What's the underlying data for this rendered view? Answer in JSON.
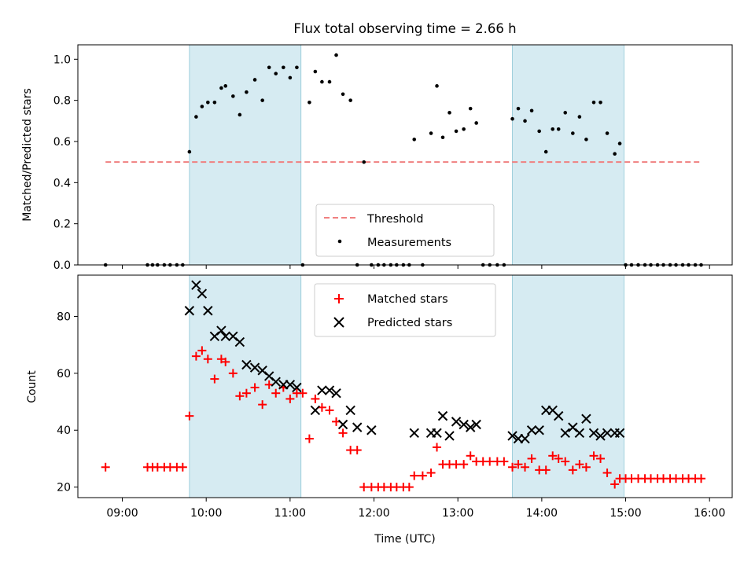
{
  "chart_data": [
    {
      "type": "scatter",
      "title": "Flux total observing time = 2.66 h",
      "ylabel": "Matched/Predicted stars",
      "xlabel": "",
      "xlim": [
        8.47,
        16.27
      ],
      "ylim": [
        0.0,
        1.07
      ],
      "yticks": [
        0.0,
        0.2,
        0.4,
        0.6,
        0.8,
        1.0
      ],
      "ytick_labels": [
        "0.0",
        "0.2",
        "0.4",
        "0.6",
        "0.8",
        "1.0"
      ],
      "shaded_spans": [
        [
          9.8,
          11.13
        ],
        [
          13.65,
          14.98
        ]
      ],
      "threshold": {
        "name": "Threshold",
        "y": 0.5,
        "x": [
          8.8,
          15.9
        ],
        "color": "#f08080"
      },
      "legend": {
        "position": "lower-center",
        "entries": [
          "Threshold",
          "Measurements"
        ]
      },
      "series": [
        {
          "name": "Measurements",
          "color": "#000000",
          "marker": "dot",
          "x": [
            8.8,
            9.3,
            9.36,
            9.42,
            9.5,
            9.57,
            9.65,
            9.72,
            9.8,
            9.88,
            9.95,
            10.02,
            10.1,
            10.18,
            10.23,
            10.32,
            10.4,
            10.48,
            10.58,
            10.67,
            10.75,
            10.83,
            10.92,
            11.0,
            11.08,
            11.15,
            11.23,
            11.3,
            11.38,
            11.47,
            11.55,
            11.63,
            11.72,
            11.8,
            11.88,
            11.97,
            12.05,
            12.12,
            12.2,
            12.27,
            12.35,
            12.42,
            12.48,
            12.58,
            12.68,
            12.75,
            12.82,
            12.9,
            12.98,
            13.07,
            13.15,
            13.22,
            13.3,
            13.38,
            13.47,
            13.55,
            13.65,
            13.72,
            13.8,
            13.88,
            13.97,
            14.05,
            14.13,
            14.2,
            14.28,
            14.37,
            14.45,
            14.53,
            14.62,
            14.7,
            14.78,
            14.87,
            14.93,
            15.0,
            15.07,
            15.15,
            15.23,
            15.3,
            15.38,
            15.45,
            15.53,
            15.6,
            15.68,
            15.75,
            15.83,
            15.9
          ],
          "y": [
            0.0,
            0.0,
            0.0,
            0.0,
            0.0,
            0.0,
            0.0,
            0.0,
            0.55,
            0.72,
            0.77,
            0.79,
            0.79,
            0.86,
            0.87,
            0.82,
            0.73,
            0.84,
            0.9,
            0.8,
            0.96,
            0.93,
            0.96,
            0.91,
            0.96,
            0.0,
            0.79,
            0.94,
            0.89,
            0.89,
            1.02,
            0.83,
            0.8,
            0.0,
            0.5,
            0.0,
            0.0,
            0.0,
            0.0,
            0.0,
            0.0,
            0.0,
            0.61,
            0.0,
            0.64,
            0.87,
            0.62,
            0.74,
            0.65,
            0.66,
            0.76,
            0.69,
            0.0,
            0.0,
            0.0,
            0.0,
            0.71,
            0.76,
            0.7,
            0.75,
            0.65,
            0.55,
            0.66,
            0.66,
            0.74,
            0.64,
            0.72,
            0.61,
            0.79,
            0.79,
            0.64,
            0.54,
            0.59,
            0.0,
            0.0,
            0.0,
            0.0,
            0.0,
            0.0,
            0.0,
            0.0,
            0.0,
            0.0,
            0.0,
            0.0,
            0.0
          ]
        }
      ]
    },
    {
      "type": "scatter",
      "title": "",
      "xlabel": "Time (UTC)",
      "ylabel": "Count",
      "xlim": [
        8.47,
        16.27
      ],
      "ylim": [
        16.3,
        94.5
      ],
      "xticks": [
        9,
        10,
        11,
        12,
        13,
        14,
        15,
        16
      ],
      "xtick_labels": [
        "09:00",
        "10:00",
        "11:00",
        "12:00",
        "13:00",
        "14:00",
        "15:00",
        "16:00"
      ],
      "yticks": [
        20,
        40,
        60,
        80
      ],
      "ytick_labels": [
        "20",
        "40",
        "60",
        "80"
      ],
      "shaded_spans": [
        [
          9.8,
          11.13
        ],
        [
          13.65,
          14.98
        ]
      ],
      "legend": {
        "position": "top-center",
        "entries": [
          "Matched stars",
          "Predicted stars"
        ]
      },
      "series": [
        {
          "name": "Matched stars",
          "color": "#ff0000",
          "marker": "plus",
          "x": [
            8.8,
            9.3,
            9.36,
            9.42,
            9.5,
            9.57,
            9.65,
            9.72,
            9.8,
            9.88,
            9.95,
            10.02,
            10.1,
            10.18,
            10.23,
            10.32,
            10.4,
            10.48,
            10.58,
            10.67,
            10.75,
            10.83,
            10.92,
            11.0,
            11.08,
            11.15,
            11.23,
            11.3,
            11.38,
            11.47,
            11.55,
            11.63,
            11.72,
            11.8,
            11.88,
            11.97,
            12.05,
            12.12,
            12.2,
            12.27,
            12.35,
            12.42,
            12.48,
            12.58,
            12.68,
            12.75,
            12.82,
            12.9,
            12.98,
            13.07,
            13.15,
            13.22,
            13.3,
            13.38,
            13.47,
            13.55,
            13.65,
            13.72,
            13.8,
            13.88,
            13.97,
            14.05,
            14.13,
            14.2,
            14.28,
            14.37,
            14.45,
            14.53,
            14.62,
            14.7,
            14.78,
            14.87,
            14.93,
            15.0,
            15.07,
            15.15,
            15.23,
            15.3,
            15.38,
            15.45,
            15.53,
            15.6,
            15.68,
            15.75,
            15.83,
            15.9
          ],
          "y": [
            27,
            27,
            27,
            27,
            27,
            27,
            27,
            27,
            45,
            66,
            68,
            65,
            58,
            65,
            64,
            60,
            52,
            53,
            55,
            49,
            56,
            53,
            55,
            51,
            53,
            53,
            37,
            51,
            48,
            47,
            43,
            39,
            33,
            33,
            20,
            20,
            20,
            20,
            20,
            20,
            20,
            20,
            24,
            24,
            25,
            34,
            28,
            28,
            28,
            28,
            31,
            29,
            29,
            29,
            29,
            29,
            27,
            28,
            27,
            30,
            26,
            26,
            31,
            30,
            29,
            26,
            28,
            27,
            31,
            30,
            25,
            21,
            23,
            23,
            23,
            23,
            23,
            23,
            23,
            23,
            23,
            23,
            23,
            23,
            23,
            23
          ]
        },
        {
          "name": "Predicted stars",
          "color": "#000000",
          "marker": "x",
          "x": [
            9.8,
            9.88,
            9.95,
            10.02,
            10.1,
            10.18,
            10.23,
            10.32,
            10.4,
            10.48,
            10.58,
            10.67,
            10.75,
            10.83,
            10.92,
            11.0,
            11.08,
            11.3,
            11.38,
            11.47,
            11.55,
            11.63,
            11.72,
            11.8,
            11.97,
            12.48,
            12.68,
            12.75,
            12.82,
            12.9,
            12.98,
            13.07,
            13.15,
            13.22,
            13.65,
            13.72,
            13.8,
            13.88,
            13.97,
            14.05,
            14.13,
            14.2,
            14.28,
            14.37,
            14.45,
            14.53,
            14.62,
            14.7,
            14.78,
            14.87,
            14.93
          ],
          "y": [
            82,
            91,
            88,
            82,
            73,
            75,
            73,
            73,
            71,
            63,
            62,
            61,
            59,
            57,
            56,
            56,
            55,
            47,
            54,
            54,
            53,
            42,
            47,
            41,
            40,
            39,
            39,
            39,
            45,
            38,
            43,
            42,
            41,
            42,
            38,
            37,
            37,
            40,
            40,
            47,
            47,
            45,
            39,
            41,
            39,
            44,
            39,
            38,
            39,
            39,
            39
          ]
        }
      ]
    }
  ]
}
